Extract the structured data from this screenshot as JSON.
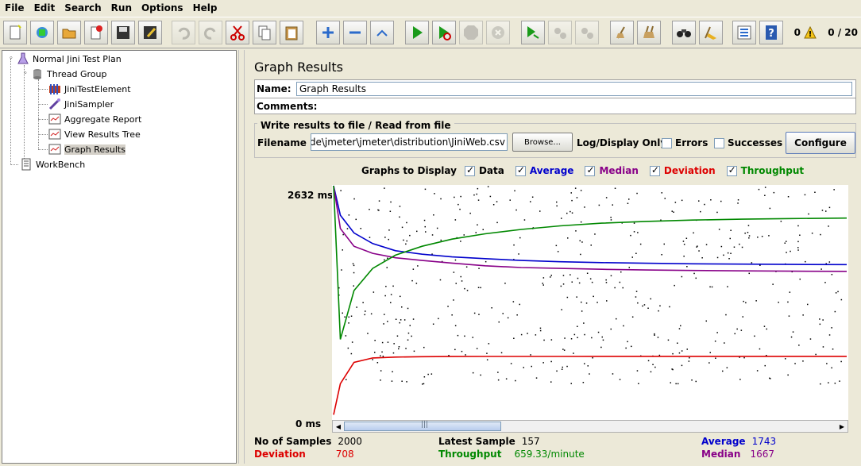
{
  "menu": [
    "File",
    "Edit",
    "Search",
    "Run",
    "Options",
    "Help"
  ],
  "toolbar": {
    "buttons": [
      "new-icon",
      "templates-icon",
      "open-icon",
      "close-icon",
      "save-icon",
      "save-as-icon",
      "undo-icon",
      "redo-icon",
      "cut-icon",
      "copy-icon",
      "paste-icon",
      "expand-icon",
      "collapse-icon",
      "toggle-icon",
      "start-icon",
      "start-no-pauses-icon",
      "stop-icon",
      "shutdown-icon",
      "remote-start-icon",
      "remote-stop-icon",
      "remote-shutdown-icon",
      "clear-icon",
      "clear-all-icon",
      "search-icon",
      "reset-search-icon",
      "function-helper-icon",
      "help-icon"
    ],
    "error_count": "0",
    "threads": "0 / 20"
  },
  "tree": {
    "items": [
      {
        "label": "Normal Jini Test Plan",
        "icon": "test-plan-icon"
      },
      {
        "label": "Thread Group",
        "icon": "thread-group-icon"
      },
      {
        "label": "JiniTestElement",
        "icon": "config-element-icon"
      },
      {
        "label": "JiniSampler",
        "icon": "sampler-icon"
      },
      {
        "label": "Aggregate Report",
        "icon": "listener-icon"
      },
      {
        "label": "View Results Tree",
        "icon": "listener-icon"
      },
      {
        "label": "Graph Results",
        "icon": "listener-icon"
      },
      {
        "label": "WorkBench",
        "icon": "workbench-icon"
      }
    ]
  },
  "panel": {
    "title": "Graph Results",
    "name_label": "Name:",
    "name_value": "Graph Results",
    "comments_label": "Comments:",
    "file_section_title": "Write results to file / Read from file",
    "filename_label": "Filename",
    "filename_value": "al\\code\\jmeter\\jmeter\\distribution\\JiniWeb.csv",
    "browse_label": "Browse...",
    "log_display_label": "Log/Display Only:",
    "errors_label": "Errors",
    "successes_label": "Successes",
    "configure_label": "Configure",
    "graphs_to_display_label": "Graphs to Display"
  },
  "graph_options": [
    {
      "label": "Data",
      "checked": true,
      "color": "#000000"
    },
    {
      "label": "Average",
      "checked": true,
      "color": "#0000cc"
    },
    {
      "label": "Median",
      "checked": true,
      "color": "#880088"
    },
    {
      "label": "Deviation",
      "checked": true,
      "color": "#dd0000"
    },
    {
      "label": "Throughput",
      "checked": true,
      "color": "#008800"
    }
  ],
  "chart": {
    "y_max_label": "2632 ms",
    "y_min_label": "0 ms"
  },
  "chart_data": {
    "type": "line",
    "ylim": [
      0,
      2632
    ],
    "y_unit": "ms",
    "series": [
      {
        "name": "Average",
        "color": "#0000cc",
        "values": [
          2632,
          2300,
          2100,
          1980,
          1900,
          1860,
          1830,
          1810,
          1790,
          1775,
          1765,
          1758,
          1752,
          1748,
          1745,
          1743
        ]
      },
      {
        "name": "Median",
        "color": "#880088",
        "values": [
          2632,
          2150,
          1950,
          1870,
          1820,
          1790,
          1760,
          1730,
          1710,
          1700,
          1690,
          1682,
          1677,
          1672,
          1669,
          1667
        ]
      },
      {
        "name": "Deviation",
        "color": "#dd0000",
        "values": [
          50,
          400,
          640,
          690,
          700,
          705,
          706,
          707,
          707,
          707,
          708,
          708,
          708,
          708,
          708,
          708
        ]
      },
      {
        "name": "Throughput",
        "color": "#008800",
        "values": [
          2632,
          900,
          1450,
          1700,
          1850,
          1950,
          2030,
          2090,
          2140,
          2180,
          2210,
          2230,
          2245,
          2255,
          2262,
          2268
        ]
      }
    ]
  },
  "stats": {
    "samples_label": "No of Samples",
    "samples_value": "2000",
    "latest_label": "Latest Sample",
    "latest_value": "157",
    "average_label": "Average",
    "average_value": "1743",
    "deviation_label": "Deviation",
    "deviation_value": "708",
    "throughput_label": "Throughput",
    "throughput_value": "659.33/minute",
    "median_label": "Median",
    "median_value": "1667",
    "colors": {
      "average": "#0000cc",
      "deviation": "#dd0000",
      "throughput": "#008800",
      "median": "#880088"
    }
  }
}
